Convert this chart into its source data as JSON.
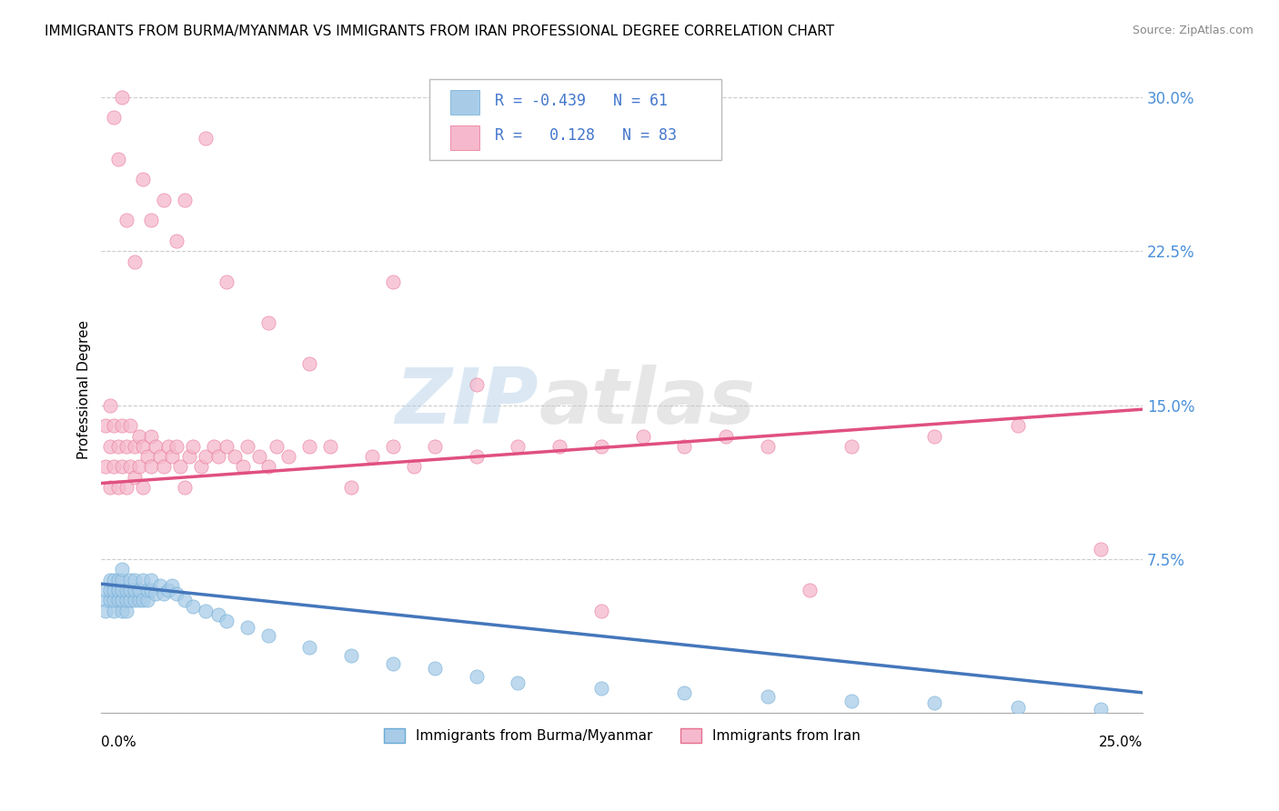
{
  "title": "IMMIGRANTS FROM BURMA/MYANMAR VS IMMIGRANTS FROM IRAN PROFESSIONAL DEGREE CORRELATION CHART",
  "source": "Source: ZipAtlas.com",
  "ylabel_label": "Professional Degree",
  "ylabel_ticks": [
    0.0,
    0.075,
    0.15,
    0.225,
    0.3
  ],
  "ylabel_tick_labels": [
    "",
    "7.5%",
    "15.0%",
    "22.5%",
    "30.0%"
  ],
  "xlim": [
    0.0,
    0.25
  ],
  "ylim": [
    0.0,
    0.315
  ],
  "watermark_zip": "ZIP",
  "watermark_atlas": "atlas",
  "grid_color": "#cccccc",
  "background_color": "#ffffff",
  "title_fontsize": 11,
  "source_fontsize": 9,
  "blue_color": "#a8cce8",
  "blue_edge": "#6aaad4",
  "blue_line_color": "#4477bb",
  "pink_color": "#f5b8cc",
  "pink_edge": "#e87090",
  "pink_line_color": "#e05080",
  "blue_trendline_x": [
    0.0,
    0.25
  ],
  "blue_trendline_y": [
    0.063,
    0.01
  ],
  "pink_trendline_x": [
    0.0,
    0.25
  ],
  "pink_trendline_y": [
    0.112,
    0.148
  ],
  "blue_x": [
    0.001,
    0.001,
    0.001,
    0.002,
    0.002,
    0.002,
    0.003,
    0.003,
    0.003,
    0.003,
    0.004,
    0.004,
    0.004,
    0.005,
    0.005,
    0.005,
    0.005,
    0.005,
    0.006,
    0.006,
    0.006,
    0.007,
    0.007,
    0.007,
    0.008,
    0.008,
    0.008,
    0.009,
    0.009,
    0.01,
    0.01,
    0.011,
    0.011,
    0.012,
    0.012,
    0.013,
    0.014,
    0.015,
    0.016,
    0.017,
    0.018,
    0.02,
    0.022,
    0.025,
    0.028,
    0.03,
    0.035,
    0.04,
    0.05,
    0.06,
    0.07,
    0.08,
    0.09,
    0.1,
    0.12,
    0.14,
    0.16,
    0.18,
    0.2,
    0.22,
    0.24
  ],
  "blue_y": [
    0.055,
    0.06,
    0.05,
    0.055,
    0.06,
    0.065,
    0.05,
    0.055,
    0.06,
    0.065,
    0.055,
    0.06,
    0.065,
    0.05,
    0.055,
    0.06,
    0.065,
    0.07,
    0.05,
    0.055,
    0.06,
    0.055,
    0.06,
    0.065,
    0.055,
    0.06,
    0.065,
    0.055,
    0.06,
    0.055,
    0.065,
    0.055,
    0.06,
    0.06,
    0.065,
    0.058,
    0.062,
    0.058,
    0.06,
    0.062,
    0.058,
    0.055,
    0.052,
    0.05,
    0.048,
    0.045,
    0.042,
    0.038,
    0.032,
    0.028,
    0.024,
    0.022,
    0.018,
    0.015,
    0.012,
    0.01,
    0.008,
    0.006,
    0.005,
    0.003,
    0.002
  ],
  "pink_x": [
    0.001,
    0.001,
    0.002,
    0.002,
    0.002,
    0.003,
    0.003,
    0.004,
    0.004,
    0.005,
    0.005,
    0.006,
    0.006,
    0.007,
    0.007,
    0.008,
    0.008,
    0.009,
    0.009,
    0.01,
    0.01,
    0.011,
    0.012,
    0.012,
    0.013,
    0.014,
    0.015,
    0.016,
    0.017,
    0.018,
    0.019,
    0.02,
    0.021,
    0.022,
    0.024,
    0.025,
    0.027,
    0.028,
    0.03,
    0.032,
    0.034,
    0.035,
    0.038,
    0.04,
    0.042,
    0.045,
    0.05,
    0.055,
    0.06,
    0.065,
    0.07,
    0.075,
    0.08,
    0.09,
    0.1,
    0.11,
    0.12,
    0.13,
    0.14,
    0.15,
    0.16,
    0.18,
    0.2,
    0.22,
    0.24,
    0.003,
    0.004,
    0.005,
    0.006,
    0.008,
    0.01,
    0.012,
    0.015,
    0.018,
    0.02,
    0.025,
    0.03,
    0.04,
    0.05,
    0.07,
    0.09,
    0.12,
    0.17
  ],
  "pink_y": [
    0.12,
    0.14,
    0.11,
    0.13,
    0.15,
    0.12,
    0.14,
    0.11,
    0.13,
    0.12,
    0.14,
    0.11,
    0.13,
    0.12,
    0.14,
    0.115,
    0.13,
    0.12,
    0.135,
    0.11,
    0.13,
    0.125,
    0.12,
    0.135,
    0.13,
    0.125,
    0.12,
    0.13,
    0.125,
    0.13,
    0.12,
    0.11,
    0.125,
    0.13,
    0.12,
    0.125,
    0.13,
    0.125,
    0.13,
    0.125,
    0.12,
    0.13,
    0.125,
    0.12,
    0.13,
    0.125,
    0.13,
    0.13,
    0.11,
    0.125,
    0.13,
    0.12,
    0.13,
    0.125,
    0.13,
    0.13,
    0.13,
    0.135,
    0.13,
    0.135,
    0.13,
    0.13,
    0.135,
    0.14,
    0.08,
    0.29,
    0.27,
    0.3,
    0.24,
    0.22,
    0.26,
    0.24,
    0.25,
    0.23,
    0.25,
    0.28,
    0.21,
    0.19,
    0.17,
    0.21,
    0.16,
    0.05,
    0.06
  ]
}
